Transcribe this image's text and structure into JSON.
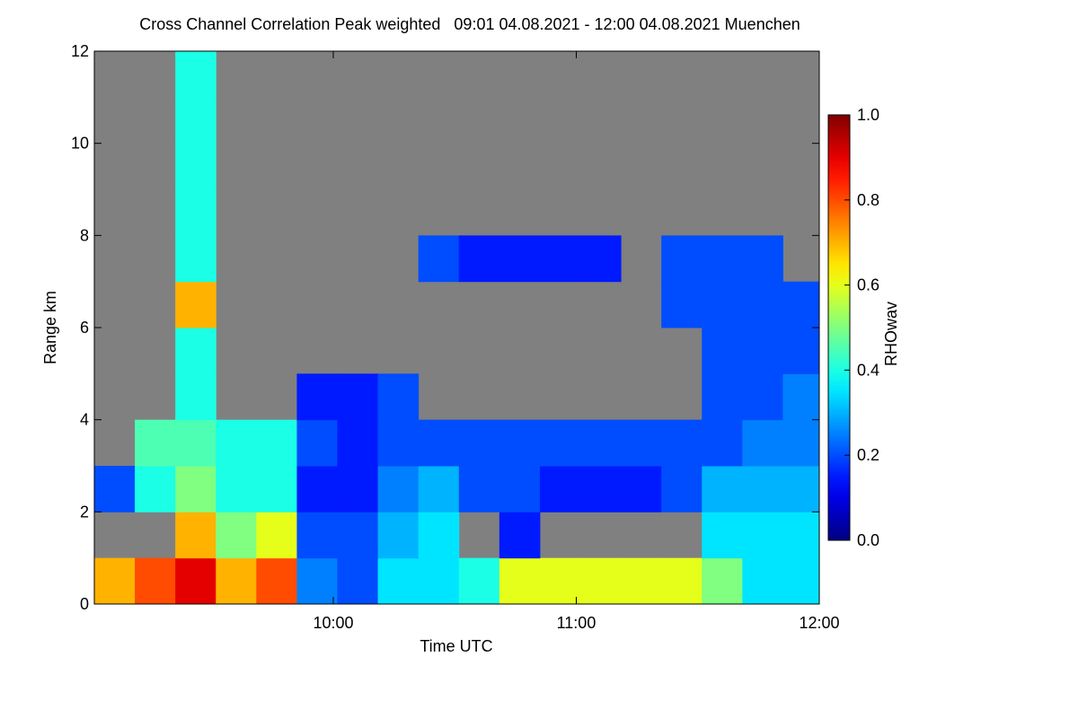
{
  "chart_data": {
    "type": "heatmap",
    "title": "Cross Channel Correlation Peak weighted   09:01 04.08.2021 - 12:00 04.08.2021 Muenchen",
    "x_label": "Time UTC",
    "y_label": "Range km",
    "colorbar_label": "RHOwav",
    "colormap": "jet",
    "background": "#808080",
    "x": [
      541,
      551,
      561,
      571,
      581,
      591,
      601,
      611,
      621,
      631,
      641,
      651,
      661,
      671,
      681,
      691,
      701,
      711,
      720
    ],
    "y": [
      0,
      1,
      2,
      3,
      4,
      5,
      6,
      7,
      8,
      9,
      10,
      11,
      12
    ],
    "z": [
      [
        0.7,
        0.8,
        0.9,
        0.7,
        0.8,
        0.25,
        0.2,
        0.35,
        0.35,
        0.4,
        0.6,
        0.6,
        0.6,
        0.6,
        0.6,
        0.5,
        0.35,
        0.35
      ],
      [
        null,
        null,
        0.7,
        0.5,
        0.6,
        0.2,
        0.2,
        0.3,
        0.35,
        null,
        0.15,
        null,
        null,
        null,
        null,
        0.35,
        0.35,
        0.35
      ],
      [
        0.2,
        0.4,
        0.5,
        0.4,
        0.4,
        0.15,
        0.15,
        0.25,
        0.3,
        0.2,
        0.2,
        0.15,
        0.15,
        0.15,
        0.2,
        0.3,
        0.3,
        0.3
      ],
      [
        null,
        0.45,
        0.45,
        0.4,
        0.4,
        0.2,
        0.15,
        0.2,
        0.2,
        0.2,
        0.2,
        0.2,
        0.2,
        0.2,
        0.2,
        0.2,
        0.25,
        0.25
      ],
      [
        null,
        null,
        0.4,
        null,
        null,
        0.15,
        0.15,
        0.2,
        null,
        null,
        null,
        null,
        null,
        null,
        null,
        0.2,
        0.2,
        0.25
      ],
      [
        null,
        null,
        0.4,
        null,
        null,
        null,
        null,
        null,
        null,
        null,
        null,
        null,
        null,
        null,
        null,
        0.2,
        0.2,
        0.2
      ],
      [
        null,
        null,
        0.7,
        null,
        null,
        null,
        null,
        null,
        null,
        null,
        null,
        null,
        null,
        null,
        0.2,
        0.2,
        0.2,
        0.2
      ],
      [
        null,
        null,
        0.4,
        null,
        null,
        null,
        null,
        null,
        0.2,
        0.15,
        0.15,
        0.15,
        0.15,
        null,
        0.2,
        0.2,
        0.2,
        null
      ],
      [
        null,
        null,
        0.4,
        null,
        null,
        null,
        null,
        null,
        null,
        null,
        null,
        null,
        null,
        null,
        null,
        null,
        null,
        null
      ],
      [
        null,
        null,
        0.4,
        null,
        null,
        null,
        null,
        null,
        null,
        null,
        null,
        null,
        null,
        null,
        null,
        null,
        null,
        null
      ],
      [
        null,
        null,
        0.4,
        null,
        null,
        null,
        null,
        null,
        null,
        null,
        null,
        null,
        null,
        null,
        null,
        null,
        null,
        null
      ],
      [
        null,
        null,
        0.4,
        null,
        null,
        null,
        null,
        null,
        null,
        null,
        null,
        null,
        null,
        null,
        null,
        null,
        null,
        null
      ]
    ],
    "xlim": [
      541,
      720
    ],
    "xticks": [
      {
        "value": 600,
        "label": "10:00"
      },
      {
        "value": 660,
        "label": "11:00"
      },
      {
        "value": 720,
        "label": "12:00"
      }
    ],
    "ylim": [
      0,
      12
    ],
    "yticks": [
      0,
      2,
      4,
      6,
      8,
      10,
      12
    ],
    "clim": [
      0,
      1
    ],
    "cticks": [
      {
        "value": 0,
        "label": "0.0"
      },
      {
        "value": 0.2,
        "label": "0.2"
      },
      {
        "value": 0.4,
        "label": "0.4"
      },
      {
        "value": 0.6,
        "label": "0.6"
      },
      {
        "value": 0.8,
        "label": "0.8"
      },
      {
        "value": 1,
        "label": "1.0"
      }
    ]
  }
}
